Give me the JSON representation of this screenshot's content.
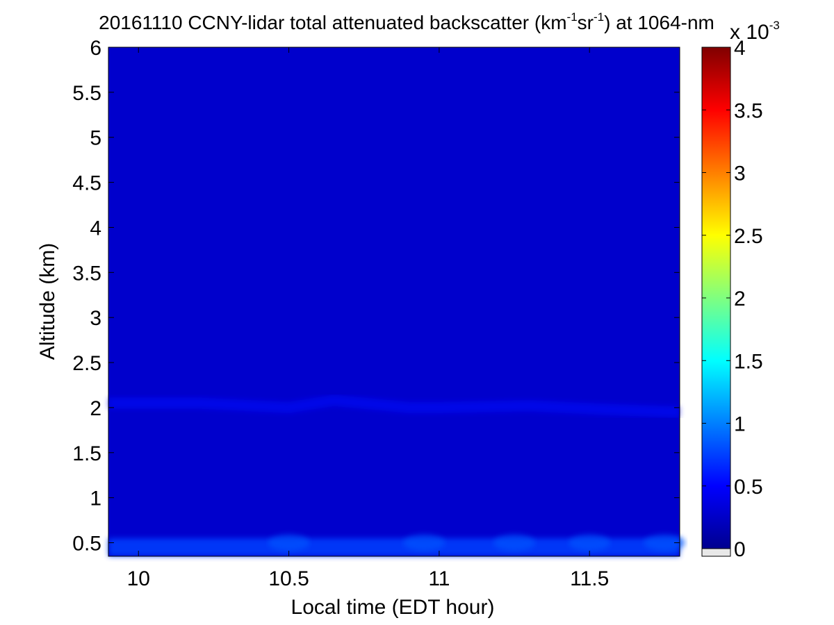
{
  "chart_data": {
    "type": "heatmap",
    "title": {
      "main": "20161110 CCNY-lidar total attenuated backscatter (km",
      "sup1": "-1",
      "mid": "sr",
      "sup2": "-1",
      "tail": ") at 1064-nm"
    },
    "xlabel": "Local time (EDT hour)",
    "ylabel": "Altitude (km)",
    "xlim": [
      9.9,
      11.8
    ],
    "ylim": [
      0.35,
      6
    ],
    "x_ticks": [
      10,
      10.5,
      11,
      11.5
    ],
    "x_tick_labels": [
      "10",
      "10.5",
      "11",
      "11.5"
    ],
    "y_ticks": [
      0.5,
      1,
      1.5,
      2,
      2.5,
      3,
      3.5,
      4,
      4.5,
      5,
      5.5,
      6
    ],
    "y_tick_labels": [
      "0.5",
      "1",
      "1.5",
      "2",
      "2.5",
      "3",
      "3.5",
      "4",
      "4.5",
      "5",
      "5.5",
      "6"
    ],
    "colorbar": {
      "colormap": "jet",
      "range": [
        0,
        4
      ],
      "ticks": [
        0,
        0.5,
        1,
        1.5,
        2,
        2.5,
        3,
        3.5,
        4
      ],
      "tick_labels": [
        "0",
        "0.5",
        "1",
        "1.5",
        "2",
        "2.5",
        "3",
        "3.5",
        "4"
      ],
      "multiplier": {
        "base": "x 10",
        "exponent": "-3"
      }
    },
    "field": {
      "background_value": 0.3,
      "layer_value": 0.55,
      "layer_altitude_profile": [
        {
          "t": 9.9,
          "alt": 2.05
        },
        {
          "t": 10.2,
          "alt": 2.05
        },
        {
          "t": 10.5,
          "alt": 2.0
        },
        {
          "t": 10.65,
          "alt": 2.08
        },
        {
          "t": 10.9,
          "alt": 2.0
        },
        {
          "t": 11.0,
          "alt": 2.0
        },
        {
          "t": 11.3,
          "alt": 2.02
        },
        {
          "t": 11.55,
          "alt": 1.98
        },
        {
          "t": 11.8,
          "alt": 1.95
        }
      ],
      "surface_value": 0.75,
      "surface_top_altitude": 0.55
    }
  }
}
